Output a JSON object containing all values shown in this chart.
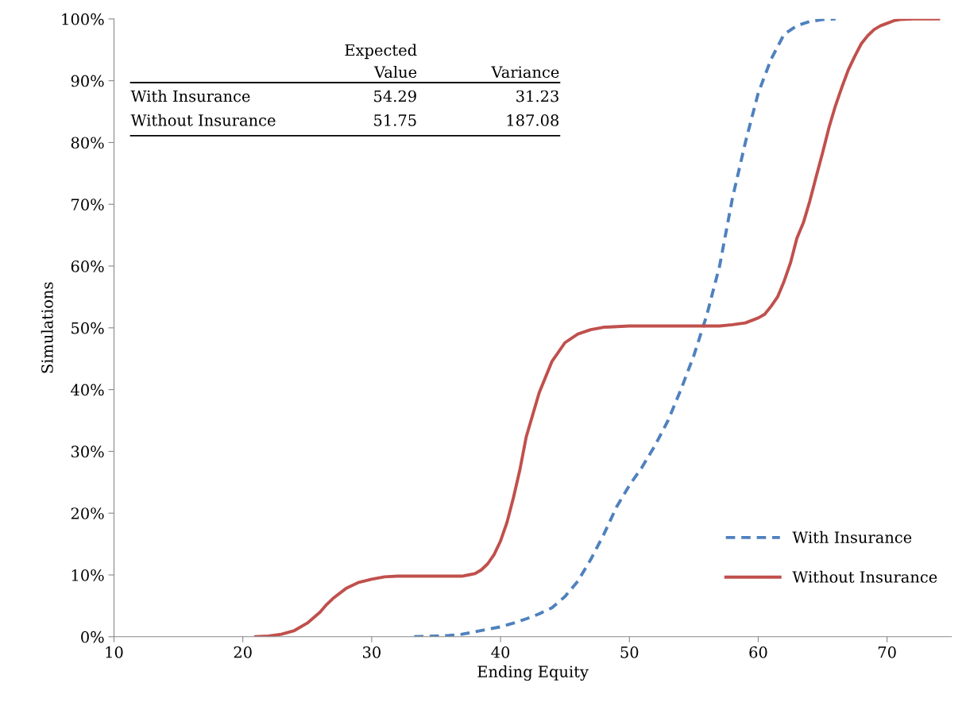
{
  "chart_data": {
    "type": "line",
    "xlabel": "Ending Equity",
    "ylabel": "Simulations",
    "xlim": [
      10,
      75
    ],
    "xticks": [
      10,
      20,
      30,
      40,
      50,
      60,
      70
    ],
    "ylim": [
      0,
      100
    ],
    "yticks": [
      {
        "value": 0,
        "label": "0%"
      },
      {
        "value": 10,
        "label": "10%"
      },
      {
        "value": 20,
        "label": "20%"
      },
      {
        "value": 30,
        "label": "30%"
      },
      {
        "value": 40,
        "label": "40%"
      },
      {
        "value": 50,
        "label": "50%"
      },
      {
        "value": 60,
        "label": "60%"
      },
      {
        "value": 70,
        "label": "70%"
      },
      {
        "value": 80,
        "label": "80%"
      },
      {
        "value": 90,
        "label": "90%"
      },
      {
        "value": 100,
        "label": "100%"
      }
    ],
    "grid": false,
    "legend": "bottom right",
    "marker": "none",
    "annotations": [
      "Expected\nValue",
      "Variance",
      "With Insurance",
      "54.29",
      "31.23",
      "Without Insurance",
      "51.75",
      "187.08"
    ],
    "series": [
      {
        "name": "With Insurance",
        "color": "#4f81bd",
        "line_style": "dashed",
        "x": [
          33.3,
          35,
          36,
          37,
          38,
          39,
          40,
          41,
          42,
          43,
          44,
          45,
          46,
          47,
          48,
          49,
          50,
          51,
          52,
          53,
          54,
          55,
          56,
          57,
          58,
          59,
          60,
          61,
          62,
          63,
          64,
          65,
          66
        ],
        "values": [
          0,
          0.1,
          0.2,
          0.4,
          0.8,
          1.2,
          1.6,
          2.2,
          2.9,
          3.7,
          4.7,
          6.5,
          9,
          12.5,
          16.5,
          21,
          24.5,
          27.5,
          31,
          35,
          40,
          45.5,
          52,
          60,
          71,
          80,
          88,
          93.5,
          97.5,
          98.9,
          99.6,
          99.9,
          100
        ]
      },
      {
        "name": "Without Insurance",
        "color": "#c0504d",
        "line_style": "solid",
        "x": [
          21,
          22,
          23,
          24,
          25,
          26,
          26.5,
          27,
          28,
          29,
          30,
          31,
          32,
          37,
          37.5,
          38,
          38.5,
          39,
          39.5,
          40,
          40.5,
          41,
          41.5,
          42,
          43,
          44,
          45,
          46,
          47,
          48,
          50,
          57,
          58,
          59,
          60,
          60.5,
          61,
          61.5,
          62,
          62.5,
          63,
          63.5,
          64,
          64.5,
          65,
          65.5,
          66,
          66.5,
          67,
          67.5,
          68,
          68.5,
          69,
          69.5,
          70,
          70.5,
          71,
          72,
          74
        ],
        "values": [
          0,
          0.1,
          0.4,
          1,
          2.2,
          4,
          5.2,
          6.2,
          7.8,
          8.8,
          9.3,
          9.7,
          9.8,
          9.8,
          10,
          10.2,
          10.8,
          11.8,
          13.3,
          15.5,
          18.5,
          22.5,
          27,
          32.4,
          39.5,
          44.6,
          47.6,
          49,
          49.7,
          50.1,
          50.3,
          50.3,
          50.5,
          50.8,
          51.6,
          52.2,
          53.5,
          55,
          57.5,
          60.5,
          64.5,
          67,
          70.5,
          74.5,
          78.4,
          82.5,
          86,
          89,
          91.8,
          94,
          96,
          97.3,
          98.3,
          98.9,
          99.3,
          99.7,
          99.9,
          100,
          100
        ]
      }
    ]
  }
}
